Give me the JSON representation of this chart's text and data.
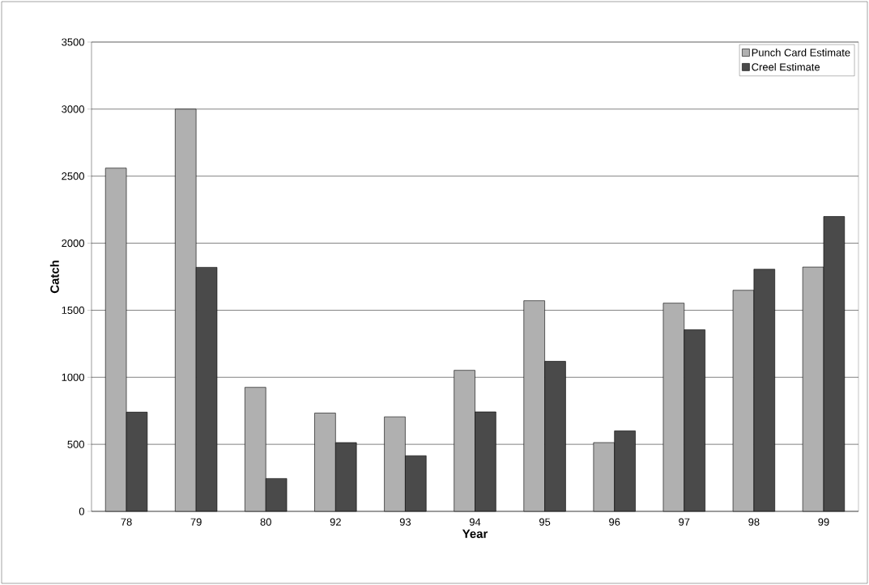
{
  "chart_data": {
    "type": "bar",
    "xlabel": "Year",
    "ylabel": "Catch",
    "categories": [
      "78",
      "79",
      "80",
      "92",
      "93",
      "94",
      "95",
      "96",
      "97",
      "98",
      "99"
    ],
    "series": [
      {
        "name": "Punch Card Estimate",
        "color": "#b0b0b0",
        "values": [
          2560,
          3000,
          925,
          733,
          705,
          1052,
          1571,
          513,
          1553,
          1649,
          1822
        ]
      },
      {
        "name": "Creel Estimate",
        "color": "#4a4a4a",
        "values": [
          740,
          1820,
          245,
          513,
          415,
          742,
          1119,
          600,
          1354,
          1806,
          2199
        ]
      }
    ],
    "ylim": [
      0,
      3500
    ],
    "yticks": [
      0,
      500,
      1000,
      1500,
      2000,
      2500,
      3000,
      3500
    ],
    "grid": "y",
    "legend": "top right"
  }
}
